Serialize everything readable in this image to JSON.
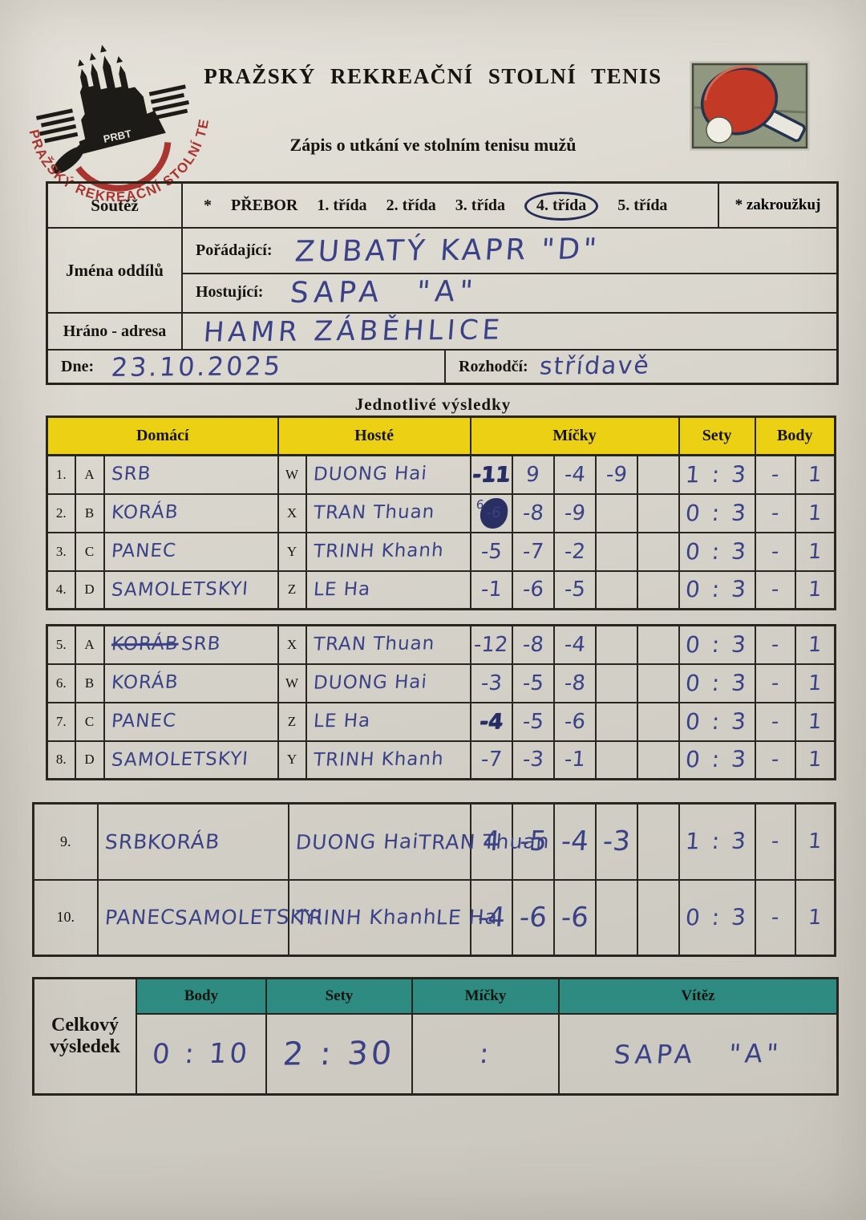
{
  "colors": {
    "paper": "#d6d3ca",
    "header_yellow": "#ecd014",
    "header_teal": "#2e8b82",
    "ink_blue": "#3b4186",
    "paddle_red": "#c23a26"
  },
  "header": {
    "org_title": "PRAŽSKÝ REKREAČNÍ STOLNÍ TENIS",
    "form_title": "Zápis o utkání ve stolním tenisu mužů",
    "logo_circular_text": "PRAŽSKÝ REKREAČNÍ STOLNÍ TENIS",
    "logo_abbr": "PRBT"
  },
  "info": {
    "soutez_label": "Soutěž",
    "asterisk": "*",
    "competition_options": [
      "PŘEBOR",
      "1. třída",
      "2. třída",
      "3. třída",
      "4. třída",
      "5. třída"
    ],
    "circled_option": "4. třída",
    "zakrouzkuj_label": "* zakroužkuj",
    "jmena_oddilu_label": "Jména oddílů",
    "poradajici_label": "Pořádající:",
    "poradajici_value": "ZUBATÝ KAPR \"D\"",
    "hostujici_label": "Hostující:",
    "hostujici_value": "SAPA \"A\"",
    "hrano_label": "Hráno - adresa",
    "hrano_value": "HAMR ZÁBĚHLICE",
    "dne_label": "Dne:",
    "dne_value": "23.10.2025",
    "rozhodci_label": "Rozhodčí:",
    "rozhodci_value": "střídavě"
  },
  "results": {
    "section_title": "Jednotlivé výsledky",
    "columns": [
      "Domácí",
      "Hosté",
      "Míčky",
      "Sety",
      "Body"
    ],
    "singles1": [
      {
        "num": "1.",
        "home_letter": "A",
        "home": "SRB",
        "guest_letter": "W",
        "guest": "DUONG Hai",
        "balls": [
          "-11",
          "9",
          "-4",
          "-9",
          ""
        ],
        "heavy": 0,
        "sets": "1 : 3",
        "body": [
          "-",
          "1"
        ]
      },
      {
        "num": "2.",
        "home_letter": "B",
        "home": "KORÁB",
        "guest_letter": "X",
        "guest": "TRAN Thuan",
        "balls": [
          "-6",
          "-8",
          "-9",
          "",
          ""
        ],
        "blot": 0,
        "blot_sup": "6",
        "sets": "0 : 3",
        "body": [
          "-",
          "1"
        ]
      },
      {
        "num": "3.",
        "home_letter": "C",
        "home": "PANEC",
        "guest_letter": "Y",
        "guest": "TRINH Khanh",
        "balls": [
          "-5",
          "-7",
          "-2",
          "",
          ""
        ],
        "sets": "0 : 3",
        "body": [
          "-",
          "1"
        ]
      },
      {
        "num": "4.",
        "home_letter": "D",
        "home": "SAMOLETSKYI",
        "guest_letter": "Z",
        "guest": "LE Ha",
        "balls": [
          "-1",
          "-6",
          "-5",
          "",
          ""
        ],
        "sets": "0 : 3",
        "body": [
          "-",
          "1"
        ]
      }
    ],
    "singles2": [
      {
        "num": "5.",
        "home_letter": "A",
        "home_struck": "KORÁB",
        "home": "SRB",
        "guest_letter": "X",
        "guest": "TRAN Thuan",
        "balls": [
          "-12",
          "-8",
          "-4",
          "",
          ""
        ],
        "sets": "0 : 3",
        "body": [
          "-",
          "1"
        ]
      },
      {
        "num": "6.",
        "home_letter": "B",
        "home": "KORÁB",
        "guest_letter": "W",
        "guest": "DUONG Hai",
        "balls": [
          "-3",
          "-5",
          "-8",
          "",
          ""
        ],
        "sets": "0 : 3",
        "body": [
          "-",
          "1"
        ]
      },
      {
        "num": "7.",
        "home_letter": "C",
        "home": "PANEC",
        "guest_letter": "Z",
        "guest": "LE Ha",
        "balls": [
          "-4",
          "-5",
          "-6",
          "",
          ""
        ],
        "heavy": 0,
        "sets": "0 : 3",
        "body": [
          "-",
          "1"
        ]
      },
      {
        "num": "8.",
        "home_letter": "D",
        "home": "SAMOLETSKYI",
        "guest_letter": "Y",
        "guest": "TRINH Khanh",
        "balls": [
          "-7",
          "-3",
          "-1",
          "",
          ""
        ],
        "sets": "0 : 3",
        "body": [
          "-",
          "1"
        ]
      }
    ],
    "doubles": [
      {
        "num": "9.",
        "home1": "SRB",
        "home2": "KORÁB",
        "home2_indent": true,
        "guest1": "DUONG Hai",
        "guest2": "TRAN Thuan",
        "balls": [
          "4",
          "-5",
          "-4",
          "-3",
          ""
        ],
        "sets": "1 : 3",
        "body": [
          "-",
          "1"
        ]
      },
      {
        "num": "10.",
        "home1": "PANEC",
        "home2": "SAMOLETSKYI",
        "guest1": "TRINH Khanh",
        "guest2": "LE Ha",
        "balls": [
          "-4",
          "-6",
          "-6",
          "",
          ""
        ],
        "sets": "0 : 3",
        "body": [
          "-",
          "1"
        ]
      }
    ]
  },
  "summary": {
    "label_line1": "Celkový",
    "label_line2": "výsledek",
    "columns": [
      "Body",
      "Sety",
      "Míčky",
      "Vítěz"
    ],
    "body_value": "0 : 10",
    "sety_value": "2 : 30",
    "micky_value": ":",
    "vitez_value": "SAPA  \"A\""
  }
}
